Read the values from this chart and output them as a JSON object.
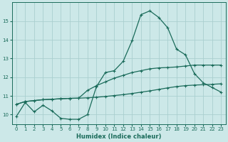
{
  "xlabel": "Humidex (Indice chaleur)",
  "background_color": "#cce8e8",
  "grid_color": "#aacfcf",
  "line_color": "#1a6b5a",
  "xlim": [
    -0.5,
    23.5
  ],
  "ylim": [
    9.5,
    16.0
  ],
  "xticks": [
    0,
    1,
    2,
    3,
    4,
    5,
    6,
    7,
    8,
    9,
    10,
    11,
    12,
    13,
    14,
    15,
    16,
    17,
    18,
    19,
    20,
    21,
    22,
    23
  ],
  "yticks": [
    10,
    11,
    12,
    13,
    14,
    15
  ],
  "line1_x": [
    0,
    1,
    2,
    3,
    4,
    5,
    6,
    7,
    8,
    9,
    10,
    11,
    12,
    13,
    14,
    15,
    16,
    17,
    18,
    19,
    20,
    21,
    22,
    23
  ],
  "line1_y": [
    9.9,
    10.65,
    10.15,
    10.5,
    10.2,
    9.8,
    9.75,
    9.75,
    10.0,
    11.5,
    12.25,
    12.35,
    12.85,
    13.95,
    15.35,
    15.55,
    15.2,
    14.65,
    13.5,
    13.2,
    12.2,
    11.7,
    11.45,
    11.2
  ],
  "line2_x": [
    0,
    1,
    2,
    3,
    4,
    5,
    6,
    7,
    8,
    9,
    10,
    11,
    12,
    13,
    14,
    15,
    16,
    17,
    18,
    19,
    20,
    21,
    22,
    23
  ],
  "line2_y": [
    10.55,
    10.7,
    10.75,
    10.8,
    10.82,
    10.85,
    10.87,
    10.88,
    10.9,
    10.93,
    10.97,
    11.02,
    11.07,
    11.13,
    11.2,
    11.27,
    11.35,
    11.43,
    11.5,
    11.55,
    11.58,
    11.6,
    11.62,
    11.65
  ],
  "line3_x": [
    0,
    1,
    2,
    3,
    4,
    5,
    6,
    7,
    8,
    9,
    10,
    11,
    12,
    13,
    14,
    15,
    16,
    17,
    18,
    19,
    20,
    21,
    22,
    23
  ],
  "line3_y": [
    10.55,
    10.7,
    10.75,
    10.8,
    10.82,
    10.85,
    10.87,
    10.88,
    11.3,
    11.55,
    11.75,
    11.95,
    12.1,
    12.25,
    12.35,
    12.45,
    12.5,
    12.52,
    12.55,
    12.6,
    12.65,
    12.65,
    12.65,
    12.65
  ]
}
